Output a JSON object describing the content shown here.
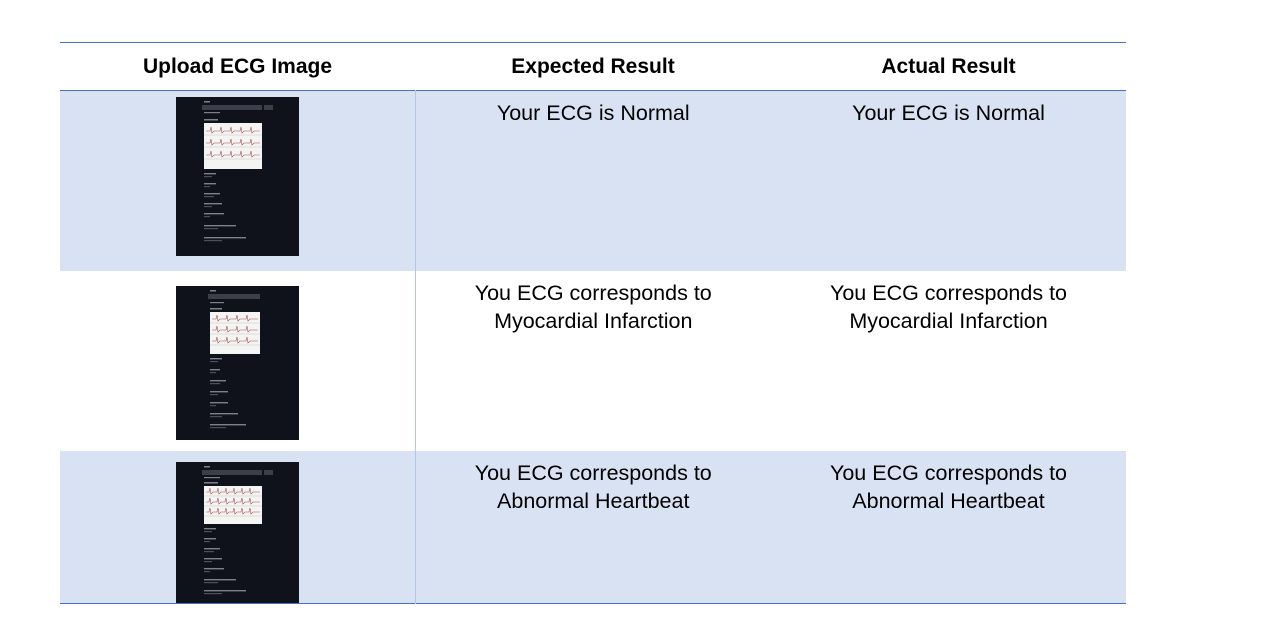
{
  "table": {
    "headers": [
      "Upload ECG Image",
      "Expected Result",
      "Actual Result"
    ],
    "rows": [
      {
        "image_icon": "ecg-upload-screenshot",
        "expected": "Your ECG is Normal",
        "actual": "Your ECG is Normal"
      },
      {
        "image_icon": "ecg-upload-screenshot",
        "expected": [
          "You ECG corresponds to",
          "Myocardial Infarction"
        ],
        "actual": [
          "You ECG corresponds to",
          "Myocardial Infarction"
        ]
      },
      {
        "image_icon": "ecg-upload-screenshot",
        "expected": [
          "You ECG corresponds to",
          "Abnormal Heartbeat"
        ],
        "actual": [
          "You ECG corresponds to",
          "Abnormal Heartbeat"
        ]
      }
    ],
    "colors": {
      "rule": "#4472c4",
      "row_shade": "#d9e2f3",
      "thumbnail_bg": "#0f121a"
    }
  }
}
